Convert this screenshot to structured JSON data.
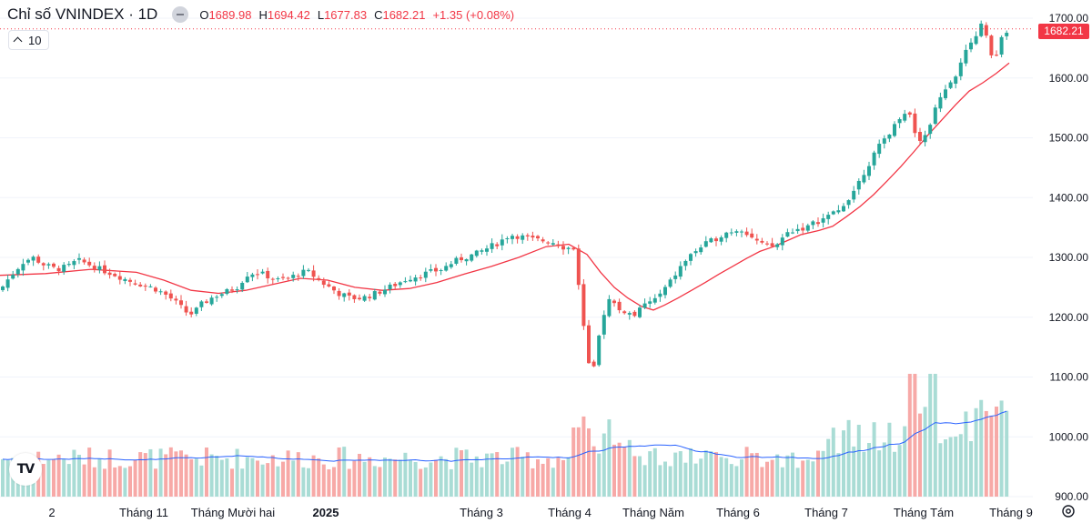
{
  "header": {
    "title": "Chỉ số VNINDEX · 1D",
    "open_label": "O",
    "open": "1689.98",
    "high_label": "H",
    "high": "1694.42",
    "low_label": "L",
    "low": "1677.83",
    "close_label": "C",
    "close": "1682.21",
    "change": "+1.35 (+0.08%)"
  },
  "indicator": {
    "ma_period": "10"
  },
  "price_tag": "1682.21",
  "colors": {
    "up": "#26a69a",
    "down": "#ef5350",
    "ma": "#f23645",
    "vol_ma": "#2962ff",
    "grid": "#f0f3fa"
  },
  "icons": {
    "logo": "tradingview-logo-icon",
    "settings": "gear-icon",
    "toggle": "visibility-toggle-icon"
  },
  "chart_data": {
    "type": "candlestick",
    "title": "Chỉ số VNINDEX · 1D",
    "y_ticks": [
      "1700.00",
      "1600.00",
      "1500.00",
      "1400.00",
      "1300.00",
      "1200.00",
      "1100.00",
      "1000.00",
      "900.00"
    ],
    "ylim": [
      895,
      1705
    ],
    "x_labels": [
      "2",
      "Tháng 11",
      "Tháng Mười hai",
      "2025",
      "Tháng 3",
      "Tháng 4",
      "Tháng Năm",
      "Tháng 6",
      "Tháng 7",
      "Tháng Tám",
      "Tháng 9"
    ],
    "last_close": 1682.21,
    "close_path": [
      [
        0,
        1245
      ],
      [
        8,
        1262
      ],
      [
        18,
        1280
      ],
      [
        25,
        1292
      ],
      [
        36,
        1300
      ],
      [
        48,
        1288
      ],
      [
        62,
        1280
      ],
      [
        75,
        1285
      ],
      [
        85,
        1295
      ],
      [
        95,
        1290
      ],
      [
        110,
        1280
      ],
      [
        125,
        1272
      ],
      [
        140,
        1262
      ],
      [
        155,
        1255
      ],
      [
        170,
        1248
      ],
      [
        185,
        1235
      ],
      [
        195,
        1222
      ],
      [
        205,
        1208
      ],
      [
        212,
        1205
      ],
      [
        220,
        1220
      ],
      [
        235,
        1235
      ],
      [
        248,
        1242
      ],
      [
        260,
        1250
      ],
      [
        272,
        1272
      ],
      [
        282,
        1275
      ],
      [
        292,
        1270
      ],
      [
        305,
        1262
      ],
      [
        318,
        1265
      ],
      [
        330,
        1275
      ],
      [
        340,
        1275
      ],
      [
        350,
        1262
      ],
      [
        360,
        1252
      ],
      [
        372,
        1240
      ],
      [
        385,
        1232
      ],
      [
        398,
        1232
      ],
      [
        410,
        1238
      ],
      [
        422,
        1246
      ],
      [
        435,
        1255
      ],
      [
        448,
        1265
      ],
      [
        460,
        1270
      ],
      [
        472,
        1275
      ],
      [
        485,
        1280
      ],
      [
        498,
        1292
      ],
      [
        510,
        1300
      ],
      [
        522,
        1305
      ],
      [
        535,
        1315
      ],
      [
        548,
        1325
      ],
      [
        560,
        1338
      ],
      [
        572,
        1335
      ],
      [
        585,
        1330
      ],
      [
        597,
        1328
      ],
      [
        610,
        1325
      ],
      [
        622,
        1315
      ],
      [
        630,
        1318
      ],
      [
        636,
        1255
      ],
      [
        640,
        1200
      ],
      [
        645,
        1145
      ],
      [
        650,
        1085
      ],
      [
        656,
        1150
      ],
      [
        662,
        1198
      ],
      [
        668,
        1230
      ],
      [
        675,
        1222
      ],
      [
        682,
        1210
      ],
      [
        690,
        1208
      ],
      [
        698,
        1200
      ],
      [
        705,
        1218
      ],
      [
        712,
        1225
      ],
      [
        720,
        1230
      ],
      [
        728,
        1242
      ],
      [
        736,
        1258
      ],
      [
        745,
        1278
      ],
      [
        755,
        1298
      ],
      [
        765,
        1312
      ],
      [
        775,
        1322
      ],
      [
        785,
        1330
      ],
      [
        795,
        1340
      ],
      [
        805,
        1345
      ],
      [
        815,
        1348
      ],
      [
        825,
        1335
      ],
      [
        833,
        1325
      ],
      [
        840,
        1318
      ],
      [
        848,
        1318
      ],
      [
        855,
        1322
      ],
      [
        862,
        1338
      ],
      [
        870,
        1345
      ],
      [
        878,
        1348
      ],
      [
        887,
        1350
      ],
      [
        895,
        1358
      ],
      [
        905,
        1365
      ],
      [
        915,
        1372
      ],
      [
        922,
        1378
      ],
      [
        930,
        1395
      ],
      [
        938,
        1412
      ],
      [
        945,
        1430
      ],
      [
        952,
        1450
      ],
      [
        960,
        1470
      ],
      [
        968,
        1490
      ],
      [
        975,
        1505
      ],
      [
        983,
        1520
      ],
      [
        992,
        1545
      ],
      [
        1000,
        1538
      ],
      [
        1006,
        1510
      ],
      [
        1013,
        1492
      ],
      [
        1020,
        1512
      ],
      [
        1026,
        1545
      ],
      [
        1033,
        1572
      ],
      [
        1040,
        1585
      ],
      [
        1048,
        1598
      ],
      [
        1055,
        1618
      ],
      [
        1062,
        1648
      ],
      [
        1070,
        1665
      ],
      [
        1078,
        1690
      ],
      [
        1085,
        1665
      ],
      [
        1092,
        1615
      ],
      [
        1098,
        1660
      ],
      [
        1104,
        1678
      ],
      [
        1109,
        1682
      ]
    ],
    "ma_path": [
      [
        0,
        1270
      ],
      [
        50,
        1273
      ],
      [
        100,
        1280
      ],
      [
        150,
        1275
      ],
      [
        180,
        1262
      ],
      [
        210,
        1245
      ],
      [
        240,
        1240
      ],
      [
        270,
        1245
      ],
      [
        300,
        1255
      ],
      [
        330,
        1265
      ],
      [
        360,
        1262
      ],
      [
        390,
        1250
      ],
      [
        420,
        1245
      ],
      [
        450,
        1248
      ],
      [
        480,
        1258
      ],
      [
        510,
        1272
      ],
      [
        540,
        1285
      ],
      [
        570,
        1300
      ],
      [
        600,
        1318
      ],
      [
        625,
        1322
      ],
      [
        645,
        1305
      ],
      [
        660,
        1275
      ],
      [
        675,
        1250
      ],
      [
        690,
        1232
      ],
      [
        705,
        1218
      ],
      [
        718,
        1212
      ],
      [
        730,
        1220
      ],
      [
        745,
        1232
      ],
      [
        760,
        1245
      ],
      [
        775,
        1258
      ],
      [
        790,
        1272
      ],
      [
        805,
        1285
      ],
      [
        820,
        1298
      ],
      [
        835,
        1310
      ],
      [
        850,
        1318
      ],
      [
        865,
        1328
      ],
      [
        880,
        1338
      ],
      [
        900,
        1345
      ],
      [
        915,
        1352
      ],
      [
        930,
        1368
      ],
      [
        945,
        1385
      ],
      [
        960,
        1405
      ],
      [
        975,
        1428
      ],
      [
        990,
        1452
      ],
      [
        1005,
        1478
      ],
      [
        1020,
        1505
      ],
      [
        1035,
        1530
      ],
      [
        1050,
        1555
      ],
      [
        1065,
        1578
      ],
      [
        1080,
        1592
      ],
      [
        1095,
        1608
      ],
      [
        1109,
        1625
      ]
    ],
    "volume_axis": "secondary"
  }
}
